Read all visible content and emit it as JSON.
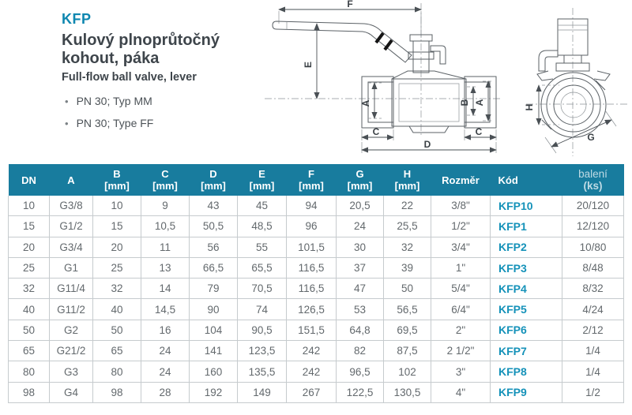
{
  "header": {
    "product_code": "KFP",
    "title_line1": "Kulový plnoprůtočný",
    "title_line2": "kohout, páka",
    "subtitle": "Full-flow ball valve, lever",
    "bullets": [
      "PN 30; Typ MM",
      "PN 30; Type FF"
    ]
  },
  "colors": {
    "accent": "#0e87b0",
    "table_header_bg": "#187c9e",
    "product_code_link": "#1592b9",
    "text_dark": "#3e454b",
    "text_gray": "#63696d",
    "divider": "#c6cbce"
  },
  "drawings": {
    "front": {
      "labels": {
        "F": "F",
        "E": "E",
        "A_left": "A",
        "B": "B",
        "A_right": "A",
        "C_left": "C",
        "C_right": "C",
        "D": "D"
      }
    },
    "side": {
      "labels": {
        "H": "H",
        "G": "G"
      }
    }
  },
  "table": {
    "columns": [
      {
        "label": "DN",
        "unit": ""
      },
      {
        "label": "A",
        "unit": ""
      },
      {
        "label": "B",
        "unit": "[mm]"
      },
      {
        "label": "C",
        "unit": "[mm]"
      },
      {
        "label": "D",
        "unit": "[mm]"
      },
      {
        "label": "E",
        "unit": "[mm]"
      },
      {
        "label": "F",
        "unit": "[mm]"
      },
      {
        "label": "G",
        "unit": "[mm]"
      },
      {
        "label": "H",
        "unit": "[mm]"
      },
      {
        "label": "Rozměr",
        "unit": ""
      },
      {
        "label": "Kód",
        "unit": ""
      },
      {
        "label": "balení",
        "unit": "(ks)"
      }
    ],
    "rows": [
      [
        "10",
        "G3/8",
        "10",
        "9",
        "43",
        "45",
        "94",
        "20,5",
        "22",
        "3/8\"",
        "KFP10",
        "20/120"
      ],
      [
        "15",
        "G1/2",
        "15",
        "10,5",
        "50,5",
        "48,5",
        "96",
        "24",
        "25,5",
        "1/2\"",
        "KFP1",
        "12/120"
      ],
      [
        "20",
        "G3/4",
        "20",
        "11",
        "56",
        "55",
        "101,5",
        "30",
        "32",
        "3/4\"",
        "KFP2",
        "10/80"
      ],
      [
        "25",
        "G1",
        "25",
        "13",
        "66,5",
        "65,5",
        "116,5",
        "37",
        "39",
        "1\"",
        "KFP3",
        "8/48"
      ],
      [
        "32",
        "G11/4",
        "32",
        "14",
        "79",
        "70,5",
        "116,5",
        "47",
        "50",
        "5/4\"",
        "KFP4",
        "8/32"
      ],
      [
        "40",
        "G11/2",
        "40",
        "14,5",
        "90",
        "74",
        "126,5",
        "53",
        "56,5",
        "6/4\"",
        "KFP5",
        "4/24"
      ],
      [
        "50",
        "G2",
        "50",
        "16",
        "104",
        "90,5",
        "151,5",
        "64,8",
        "69,5",
        "2\"",
        "KFP6",
        "2/12"
      ],
      [
        "65",
        "G21/2",
        "65",
        "24",
        "141",
        "123,5",
        "242",
        "82",
        "87,5",
        "2 1/2\"",
        "KFP7",
        "1/4"
      ],
      [
        "80",
        "G3",
        "80",
        "24",
        "160",
        "135,5",
        "242",
        "96,5",
        "102",
        "3\"",
        "KFP8",
        "1/4"
      ],
      [
        "98",
        "G4",
        "98",
        "28",
        "192",
        "149",
        "267",
        "122,5",
        "130,5",
        "4\"",
        "KFP9",
        "1/2"
      ]
    ]
  }
}
